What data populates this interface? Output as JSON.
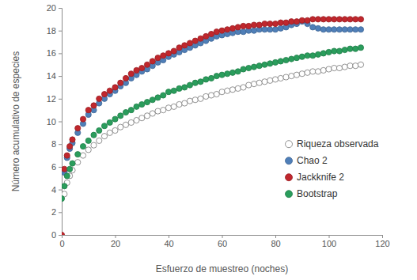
{
  "chart_data": {
    "type": "scatter",
    "x_label": "Esfuerzo de muestreo (noches)",
    "y_label": "Número acumulativo de especies",
    "xlim": [
      0,
      120
    ],
    "ylim": [
      0,
      20
    ],
    "xticks": [
      0,
      20,
      40,
      60,
      80,
      100,
      120
    ],
    "yticks": [
      0,
      2,
      4,
      6,
      8,
      10,
      12,
      14,
      16,
      18,
      20
    ],
    "grid": false,
    "legend": "right",
    "marker": "circle",
    "x": [
      0,
      1,
      2,
      3,
      4,
      6,
      8,
      10,
      12,
      14,
      16,
      18,
      20,
      22,
      24,
      26,
      28,
      30,
      32,
      34,
      36,
      38,
      40,
      42,
      44,
      46,
      48,
      50,
      52,
      54,
      56,
      58,
      60,
      62,
      64,
      66,
      68,
      70,
      72,
      74,
      76,
      78,
      80,
      82,
      84,
      86,
      88,
      90,
      92,
      94,
      96,
      98,
      100,
      102,
      104,
      106,
      108,
      110,
      112
    ],
    "series": [
      {
        "name": "Riqueza observada",
        "color": "#ffffff",
        "values": [
          null,
          3.6,
          4.6,
          5.2,
          5.7,
          6.4,
          7.0,
          7.5,
          7.9,
          8.3,
          8.7,
          9.0,
          9.2,
          9.5,
          9.7,
          9.9,
          10.1,
          10.3,
          10.5,
          10.7,
          10.9,
          11.0,
          11.2,
          11.3,
          11.5,
          11.6,
          11.8,
          11.9,
          12.0,
          12.2,
          12.3,
          12.4,
          12.6,
          12.7,
          12.8,
          12.9,
          13.0,
          13.2,
          13.3,
          13.4,
          13.5,
          13.6,
          13.7,
          13.8,
          13.9,
          14.0,
          14.1,
          14.2,
          14.3,
          14.4,
          14.4,
          14.5,
          14.6,
          14.7,
          14.7,
          14.8,
          14.9,
          14.9,
          15.0
        ]
      },
      {
        "name": "Chao 2",
        "color": "#4f7fb8",
        "values": [
          null,
          5.5,
          6.8,
          7.6,
          8.1,
          9.0,
          9.8,
          10.6,
          11.0,
          11.6,
          12.0,
          12.4,
          12.7,
          13.1,
          13.4,
          13.8,
          14.1,
          14.4,
          14.6,
          14.9,
          15.2,
          15.4,
          15.7,
          15.9,
          16.1,
          16.3,
          16.5,
          16.7,
          16.9,
          17.1,
          17.3,
          17.5,
          17.6,
          17.7,
          17.8,
          17.9,
          17.9,
          18.0,
          18.0,
          18.1,
          18.1,
          18.1,
          18.1,
          18.2,
          18.3,
          18.5,
          18.6,
          18.8,
          18.6,
          18.3,
          18.2,
          18.1,
          18.1,
          18.1,
          18.1,
          18.1,
          18.1,
          18.1,
          18.1
        ]
      },
      {
        "name": "Jackknife 2",
        "color": "#c0272d",
        "values": [
          0,
          5.8,
          7.0,
          7.8,
          8.4,
          9.4,
          10.2,
          11.0,
          11.4,
          12.0,
          12.4,
          12.7,
          13.0,
          13.4,
          13.8,
          14.2,
          14.5,
          14.7,
          15.0,
          15.3,
          15.6,
          15.8,
          16.0,
          16.2,
          16.5,
          16.7,
          16.9,
          17.1,
          17.3,
          17.5,
          17.7,
          17.9,
          18.0,
          18.1,
          18.2,
          18.3,
          18.4,
          18.4,
          18.5,
          18.5,
          18.6,
          18.6,
          18.6,
          18.7,
          18.7,
          18.8,
          18.8,
          18.9,
          18.9,
          19.0,
          19.0,
          19.0,
          19.0,
          19.0,
          19.0,
          19.0,
          19.0,
          19.0,
          19.0
        ]
      },
      {
        "name": "Bootstrap",
        "color": "#2a9d5c",
        "values": [
          3.2,
          4.3,
          5.2,
          5.8,
          6.3,
          7.1,
          7.8,
          8.3,
          8.8,
          9.2,
          9.6,
          9.9,
          10.2,
          10.5,
          10.8,
          11.0,
          11.3,
          11.5,
          11.7,
          11.9,
          12.1,
          12.3,
          12.6,
          12.7,
          12.9,
          13.0,
          13.2,
          13.4,
          13.5,
          13.7,
          13.8,
          14.0,
          14.1,
          14.2,
          14.3,
          14.4,
          14.6,
          14.7,
          14.8,
          14.9,
          15.0,
          15.1,
          15.2,
          15.3,
          15.4,
          15.5,
          15.6,
          15.7,
          15.8,
          15.8,
          15.9,
          16.0,
          16.1,
          16.2,
          16.2,
          16.3,
          16.4,
          16.4,
          16.5
        ]
      }
    ]
  }
}
